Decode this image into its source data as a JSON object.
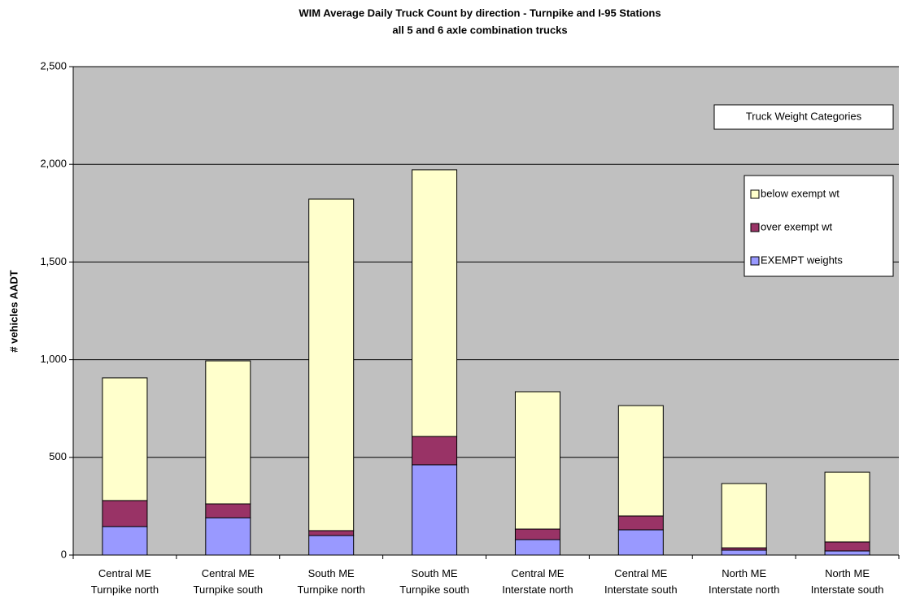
{
  "chart_data": {
    "type": "stacked_bar",
    "title": "WIM Average Daily Truck Count by direction - Turnpike and I-95 Stations",
    "subtitle": "all 5 and 6 axle combination trucks",
    "y_label": "# vehicles AADT",
    "legend_title": "Truck Weight Categories",
    "categories": [
      [
        "Central ME",
        "Turnpike north"
      ],
      [
        "Central ME",
        "Turnpike south"
      ],
      [
        "South ME",
        "Turnpike north"
      ],
      [
        "South ME",
        "Turnpike south"
      ],
      [
        "Central ME",
        "Interstate north"
      ],
      [
        "Central ME",
        "Interstate south"
      ],
      [
        "North ME",
        "Interstate north"
      ],
      [
        "North ME",
        "Interstate south"
      ]
    ],
    "series": [
      {
        "name": "EXEMPT weights",
        "color": "#9999ff",
        "values": [
          146,
          191,
          100,
          462,
          79,
          129,
          25,
          21
        ]
      },
      {
        "name": "over exempt wt",
        "color": "#993366",
        "values": [
          133,
          71,
          25,
          145,
          54,
          71,
          12,
          46
        ]
      },
      {
        "name": "below exempt wt",
        "color": "#ffffcc",
        "values": [
          628,
          732,
          1697,
          1365,
          703,
          565,
          329,
          357
        ]
      }
    ],
    "ylim": [
      0,
      2500
    ],
    "yticks": [
      0,
      500,
      {
        "value": 1000,
        "label": "1,000"
      },
      {
        "value": 1500,
        "label": "1,500"
      },
      {
        "value": 2000,
        "label": "2,000"
      },
      {
        "value": 2500,
        "label": "2,500"
      }
    ],
    "grid": true,
    "plot_background": "#c0c0c0"
  }
}
